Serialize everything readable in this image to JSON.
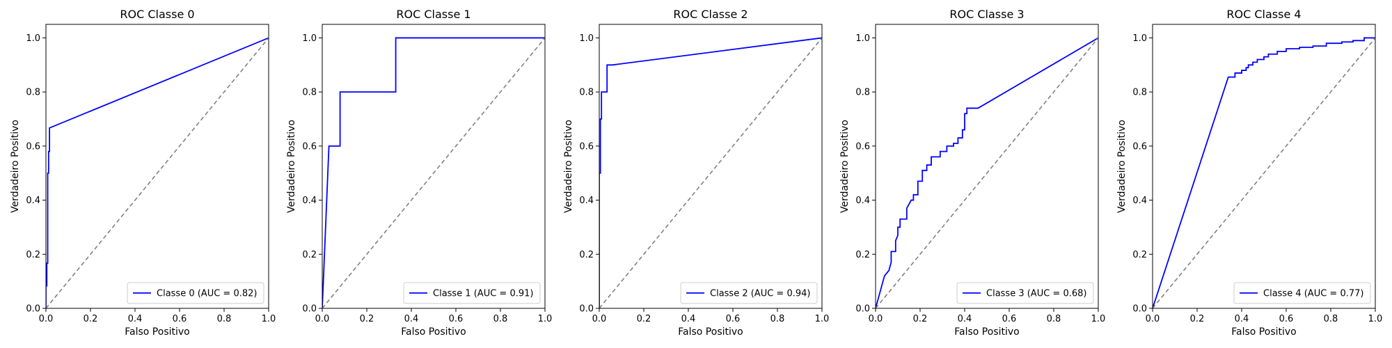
{
  "chart_data": [
    {
      "type": "line",
      "title": "ROC Classe 0",
      "xlabel": "Falso Positivo",
      "ylabel": "Verdadeiro Positivo",
      "xlim": [
        0,
        1
      ],
      "ylim": [
        0,
        1.05
      ],
      "xticks": [
        "0.0",
        "0.2",
        "0.4",
        "0.6",
        "0.8",
        "1.0"
      ],
      "yticks": [
        "0.0",
        "0.2",
        "0.4",
        "0.6",
        "0.8",
        "1.0"
      ],
      "legend": "lower-right",
      "series": [
        {
          "name": "Classe 0 (AUC = 0.82)",
          "color": "#0000ff",
          "x": [
            0,
            0,
            0.004,
            0.004,
            0.008,
            0.008,
            0.012,
            0.012,
            0.016,
            0.016,
            1.0
          ],
          "y": [
            0,
            0.083,
            0.083,
            0.167,
            0.167,
            0.5,
            0.5,
            0.58,
            0.58,
            0.667,
            1.0
          ]
        },
        {
          "name": "",
          "color": "#808080",
          "dashed": true,
          "x": [
            0,
            1
          ],
          "y": [
            0,
            1
          ]
        }
      ]
    },
    {
      "type": "line",
      "title": "ROC Classe 1",
      "xlabel": "Falso Positivo",
      "ylabel": "Verdadeiro Positivo",
      "xlim": [
        0,
        1
      ],
      "ylim": [
        0,
        1.05
      ],
      "xticks": [
        "0.0",
        "0.2",
        "0.4",
        "0.6",
        "0.8",
        "1.0"
      ],
      "yticks": [
        "0.0",
        "0.2",
        "0.4",
        "0.6",
        "0.8",
        "1.0"
      ],
      "legend": "lower-right",
      "series": [
        {
          "name": "Classe 1 (AUC = 0.91)",
          "color": "#0000ff",
          "x": [
            0,
            0.03,
            0.03,
            0.08,
            0.08,
            0.33,
            0.33,
            1.0
          ],
          "y": [
            0,
            0.6,
            0.6,
            0.6,
            0.8,
            0.8,
            1.0,
            1.0
          ]
        },
        {
          "name": "",
          "color": "#808080",
          "dashed": true,
          "x": [
            0,
            1
          ],
          "y": [
            0,
            1
          ]
        }
      ]
    },
    {
      "type": "line",
      "title": "ROC Classe 2",
      "xlabel": "Falso Positivo",
      "ylabel": "Verdadeiro Positivo",
      "xlim": [
        0,
        1
      ],
      "ylim": [
        0,
        1.05
      ],
      "xticks": [
        "0.0",
        "0.2",
        "0.4",
        "0.6",
        "0.8",
        "1.0"
      ],
      "yticks": [
        "0.0",
        "0.2",
        "0.4",
        "0.6",
        "0.8",
        "1.0"
      ],
      "legend": "lower-right",
      "series": [
        {
          "name": "Classe 2 (AUC = 0.94)",
          "color": "#0000ff",
          "x": [
            0,
            0,
            0.005,
            0.005,
            0.01,
            0.01,
            0.035,
            0.035,
            0.06,
            1.0
          ],
          "y": [
            0,
            0.5,
            0.5,
            0.7,
            0.7,
            0.8,
            0.8,
            0.9,
            0.9,
            1.0
          ]
        },
        {
          "name": "",
          "color": "#808080",
          "dashed": true,
          "x": [
            0,
            1
          ],
          "y": [
            0,
            1
          ]
        }
      ]
    },
    {
      "type": "line",
      "title": "ROC Classe 3",
      "xlabel": "Falso Positivo",
      "ylabel": "Verdadeiro Positivo",
      "xlim": [
        0,
        1
      ],
      "ylim": [
        0,
        1.05
      ],
      "xticks": [
        "0.0",
        "0.2",
        "0.4",
        "0.6",
        "0.8",
        "1.0"
      ],
      "yticks": [
        "0.0",
        "0.2",
        "0.4",
        "0.6",
        "0.8",
        "1.0"
      ],
      "legend": "lower-right",
      "series": [
        {
          "name": "Classe 3 (AUC = 0.68)",
          "color": "#0000ff",
          "x": [
            0,
            0.04,
            0.05,
            0.06,
            0.07,
            0.07,
            0.09,
            0.09,
            0.1,
            0.1,
            0.11,
            0.11,
            0.14,
            0.14,
            0.16,
            0.17,
            0.17,
            0.19,
            0.19,
            0.21,
            0.21,
            0.23,
            0.23,
            0.25,
            0.25,
            0.29,
            0.29,
            0.32,
            0.32,
            0.35,
            0.35,
            0.37,
            0.37,
            0.39,
            0.39,
            0.4,
            0.4,
            0.41,
            0.41,
            0.46,
            1.0
          ],
          "y": [
            0,
            0.12,
            0.13,
            0.14,
            0.17,
            0.21,
            0.21,
            0.25,
            0.27,
            0.3,
            0.3,
            0.33,
            0.33,
            0.37,
            0.4,
            0.4,
            0.42,
            0.42,
            0.47,
            0.47,
            0.51,
            0.51,
            0.53,
            0.53,
            0.56,
            0.56,
            0.58,
            0.58,
            0.6,
            0.6,
            0.61,
            0.61,
            0.63,
            0.63,
            0.66,
            0.66,
            0.72,
            0.72,
            0.74,
            0.74,
            1.0
          ]
        },
        {
          "name": "",
          "color": "#808080",
          "dashed": true,
          "x": [
            0,
            1
          ],
          "y": [
            0,
            1
          ]
        }
      ]
    },
    {
      "type": "line",
      "title": "ROC Classe 4",
      "xlabel": "Falso Positivo",
      "ylabel": "Verdadeiro Positivo",
      "xlim": [
        0,
        1
      ],
      "ylim": [
        0,
        1.05
      ],
      "xticks": [
        "0.0",
        "0.2",
        "0.4",
        "0.6",
        "0.8",
        "1.0"
      ],
      "yticks": [
        "0.0",
        "0.2",
        "0.4",
        "0.6",
        "0.8",
        "1.0"
      ],
      "legend": "lower-right",
      "series": [
        {
          "name": "Classe 4 (AUC = 0.77)",
          "color": "#0000ff",
          "x": [
            0,
            0.34,
            0.37,
            0.37,
            0.4,
            0.4,
            0.42,
            0.42,
            0.43,
            0.43,
            0.45,
            0.45,
            0.47,
            0.47,
            0.5,
            0.5,
            0.52,
            0.52,
            0.56,
            0.56,
            0.6,
            0.6,
            0.66,
            0.66,
            0.72,
            0.72,
            0.78,
            0.78,
            0.85,
            0.85,
            0.9,
            0.9,
            0.95,
            0.95,
            1.0
          ],
          "y": [
            0,
            0.855,
            0.855,
            0.87,
            0.87,
            0.88,
            0.88,
            0.89,
            0.89,
            0.9,
            0.9,
            0.91,
            0.91,
            0.92,
            0.92,
            0.93,
            0.93,
            0.94,
            0.94,
            0.95,
            0.95,
            0.96,
            0.96,
            0.965,
            0.965,
            0.97,
            0.97,
            0.98,
            0.98,
            0.985,
            0.985,
            0.99,
            0.99,
            1.0,
            1.0
          ]
        },
        {
          "name": "",
          "color": "#808080",
          "dashed": true,
          "x": [
            0,
            1
          ],
          "y": [
            0,
            1
          ]
        }
      ]
    }
  ]
}
